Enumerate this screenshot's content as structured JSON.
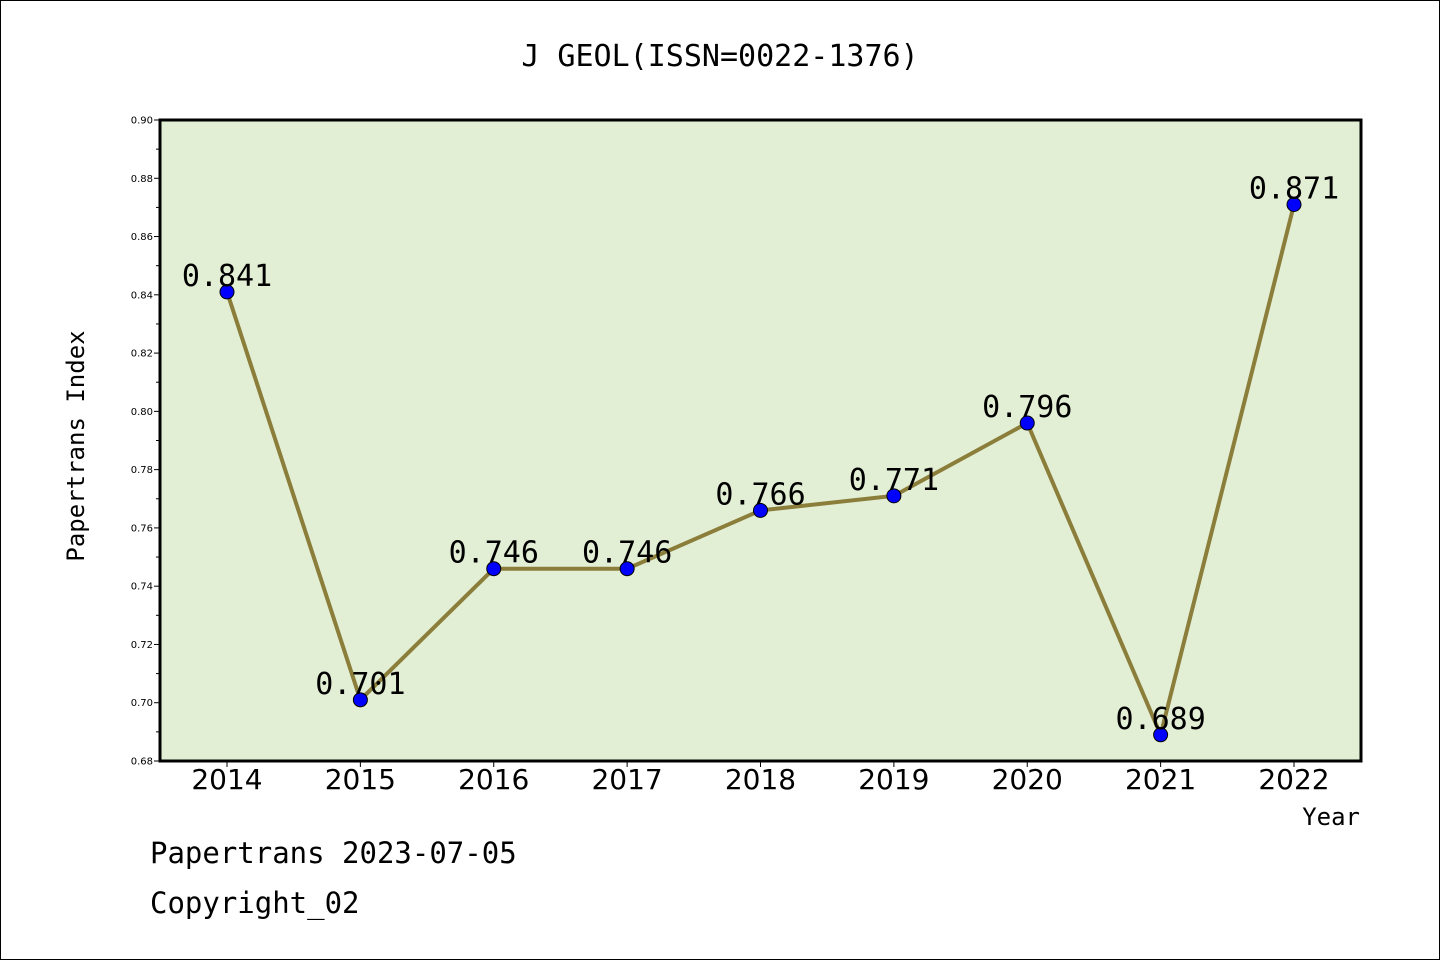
{
  "chart_data": {
    "type": "line",
    "title": "J GEOL(ISSN=0022-1376)",
    "xlabel": "Year",
    "ylabel": "Papertrans Index",
    "categories": [
      "2014",
      "2015",
      "2016",
      "2017",
      "2018",
      "2019",
      "2020",
      "2021",
      "2022"
    ],
    "series": [
      {
        "values": [
          0.841,
          0.701,
          0.746,
          0.746,
          0.766,
          0.771,
          0.796,
          0.689,
          0.871
        ]
      }
    ],
    "data_labels": [
      "0.841",
      "0.701",
      "0.746",
      "0.746",
      "0.766",
      "0.771",
      "0.796",
      "0.689",
      "0.871"
    ],
    "ylim": [
      0.68,
      0.9
    ],
    "yticks": [
      "0.68",
      "0.70",
      "0.72",
      "0.74",
      "0.76",
      "0.78",
      "0.80",
      "0.82",
      "0.84",
      "0.86",
      "0.88",
      "0.90"
    ],
    "grid": false,
    "colors": {
      "plot_background": "#e2efd5",
      "line": "#8b7d3a",
      "marker": "#0000ff"
    }
  },
  "footer": {
    "line1": "Papertrans 2023-07-05",
    "line2": "Copyright_02"
  }
}
